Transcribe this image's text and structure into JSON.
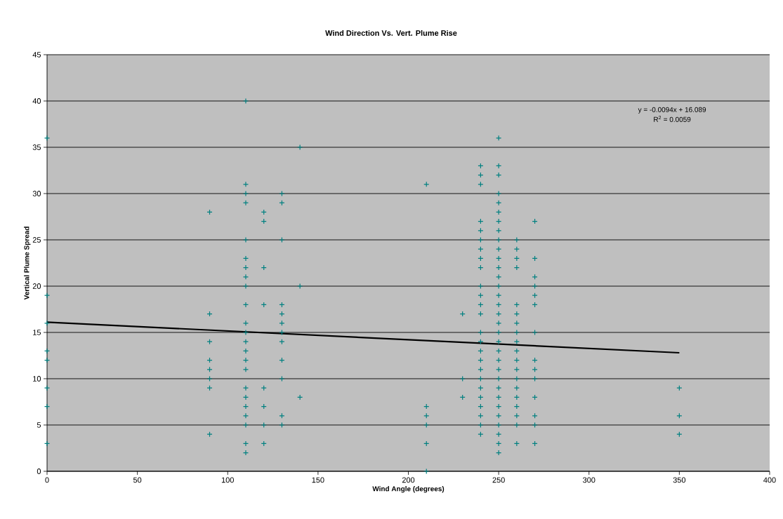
{
  "chart_data": {
    "type": "scatter",
    "title": "Wind Direction Vs. Vert. Plume Rise",
    "xlabel": "Wind Angle (degrees)",
    "ylabel": "Vertical Plume Spread",
    "xlim": [
      0,
      400
    ],
    "xticks": [
      0,
      50,
      100,
      150,
      200,
      250,
      300,
      350,
      400
    ],
    "ylim": [
      0,
      45
    ],
    "yticks": [
      0,
      5,
      10,
      15,
      20,
      25,
      30,
      35,
      40,
      45
    ],
    "grid": "y",
    "marker": "cross",
    "annotations": [
      "y = -0.0094x + 16.089",
      "R$^{2}$ = 0.0059"
    ],
    "series": [
      {
        "color": "#008080",
        "x": [
          0,
          0,
          0,
          0,
          0,
          0,
          0,
          0,
          90,
          90,
          90,
          90,
          90,
          90,
          90,
          90,
          110,
          110,
          110,
          110,
          110,
          110,
          110,
          110,
          110,
          110,
          110,
          110,
          110,
          110,
          110,
          110,
          110,
          110,
          110,
          110,
          110,
          110,
          110,
          120,
          120,
          120,
          120,
          120,
          120,
          120,
          120,
          130,
          130,
          130,
          130,
          130,
          130,
          130,
          130,
          130,
          130,
          130,
          130,
          140,
          140,
          140,
          210,
          210,
          210,
          210,
          210,
          210,
          230,
          230,
          230,
          240,
          240,
          240,
          240,
          240,
          240,
          240,
          240,
          240,
          240,
          240,
          240,
          240,
          240,
          240,
          240,
          240,
          240,
          240,
          240,
          240,
          240,
          240,
          240,
          240,
          250,
          250,
          250,
          250,
          250,
          250,
          250,
          250,
          250,
          250,
          250,
          250,
          250,
          250,
          250,
          250,
          250,
          250,
          250,
          250,
          250,
          250,
          250,
          250,
          250,
          250,
          250,
          250,
          250,
          250,
          250,
          250,
          260,
          260,
          260,
          260,
          260,
          260,
          260,
          260,
          260,
          260,
          260,
          260,
          260,
          260,
          260,
          260,
          260,
          260,
          260,
          270,
          270,
          270,
          270,
          270,
          270,
          270,
          270,
          270,
          270,
          270,
          270,
          270,
          270,
          350,
          350,
          350
        ],
        "values": [
          36,
          19,
          16,
          13,
          12,
          9,
          7,
          3,
          28,
          17,
          14,
          12,
          11,
          10,
          9,
          4,
          40,
          31,
          30,
          29,
          25,
          23,
          22,
          21,
          20,
          18,
          16,
          15,
          14,
          13,
          12,
          11,
          9,
          8,
          7,
          6,
          5,
          3,
          2,
          28,
          27,
          22,
          18,
          9,
          7,
          5,
          3,
          30,
          29,
          25,
          18,
          17,
          16,
          15,
          14,
          12,
          10,
          6,
          5,
          35,
          20,
          8,
          31,
          7,
          6,
          5,
          3,
          0,
          17,
          10,
          8,
          33,
          32,
          31,
          27,
          26,
          25,
          24,
          23,
          22,
          20,
          19,
          18,
          17,
          15,
          14,
          13,
          12,
          11,
          10,
          9,
          8,
          7,
          6,
          5,
          4,
          36,
          33,
          32,
          30,
          29,
          28,
          27,
          26,
          25,
          24,
          23,
          22,
          21,
          20,
          19,
          18,
          17,
          16,
          15,
          14,
          13,
          12,
          11,
          10,
          9,
          8,
          7,
          6,
          5,
          4,
          3,
          2,
          25,
          24,
          23,
          22,
          18,
          17,
          16,
          15,
          14,
          13,
          12,
          11,
          10,
          9,
          8,
          7,
          6,
          5,
          3,
          27,
          23,
          21,
          20,
          19,
          18,
          15,
          12,
          11,
          10,
          8,
          6,
          5,
          3,
          9,
          6,
          4
        ]
      },
      {
        "type": "line",
        "color": "#000000",
        "marker": "none",
        "x": [
          0,
          350
        ],
        "values": [
          16.1,
          12.8
        ]
      }
    ]
  }
}
